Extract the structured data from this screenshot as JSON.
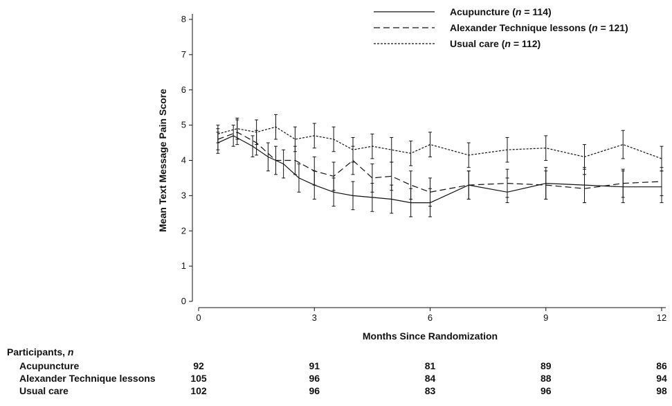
{
  "chart_data": {
    "type": "line",
    "xlabel": "Months Since Randomization",
    "ylabel": "Mean Text Message Pain Score",
    "xlim": [
      0,
      12
    ],
    "ylim": [
      0,
      8
    ],
    "xticks": [
      0,
      3,
      6,
      9,
      12
    ],
    "yticks": [
      0,
      1,
      2,
      3,
      4,
      5,
      6,
      7,
      8
    ],
    "legend_position": "top-right",
    "series": [
      {
        "name_main": "Acupuncture",
        "name_n": "114",
        "style": "solid",
        "x": [
          0.5,
          0.9,
          1.4,
          1.8,
          2.2,
          2.6,
          3.0,
          3.5,
          4.0,
          4.5,
          5.0,
          5.5,
          6.0,
          7.0,
          8.0,
          9.0,
          10.0,
          11.0,
          12.0
        ],
        "y": [
          4.5,
          4.7,
          4.4,
          4.1,
          3.9,
          3.5,
          3.3,
          3.1,
          3.0,
          2.95,
          2.9,
          2.8,
          2.8,
          3.3,
          3.1,
          3.35,
          3.3,
          3.25,
          3.25
        ],
        "low": [
          4.2,
          4.4,
          4.1,
          3.7,
          3.5,
          3.1,
          2.9,
          2.7,
          2.6,
          2.55,
          2.5,
          2.4,
          2.4,
          2.9,
          2.8,
          2.9,
          2.8,
          2.8,
          2.8
        ],
        "high": [
          4.8,
          5.0,
          4.7,
          4.5,
          4.3,
          3.9,
          3.7,
          3.5,
          3.4,
          3.35,
          3.3,
          3.2,
          3.2,
          3.7,
          3.5,
          3.8,
          3.8,
          3.7,
          3.7
        ]
      },
      {
        "name_main": "Alexander Technique lessons",
        "name_n": "121",
        "style": "dashed",
        "x": [
          0.5,
          1.0,
          1.5,
          2.0,
          2.5,
          3.0,
          3.5,
          4.0,
          4.5,
          5.0,
          5.5,
          6.0,
          7.0,
          8.0,
          9.0,
          10.0,
          11.0,
          12.0
        ],
        "y": [
          4.6,
          4.8,
          4.5,
          4.0,
          4.0,
          3.7,
          3.55,
          4.0,
          3.5,
          3.55,
          3.3,
          3.1,
          3.3,
          3.35,
          3.3,
          3.2,
          3.35,
          3.4
        ],
        "low": [
          4.3,
          4.45,
          4.15,
          3.6,
          3.6,
          3.3,
          3.15,
          3.6,
          3.1,
          3.15,
          2.9,
          2.7,
          2.9,
          2.95,
          2.9,
          2.8,
          2.95,
          3.0
        ],
        "high": [
          4.9,
          5.15,
          4.85,
          4.4,
          4.4,
          4.1,
          3.95,
          4.4,
          3.9,
          3.95,
          3.7,
          3.5,
          3.7,
          3.75,
          3.7,
          3.6,
          3.75,
          3.8
        ]
      },
      {
        "name_main": "Usual care",
        "name_n": "112",
        "style": "dotted",
        "x": [
          0.5,
          1.0,
          1.5,
          2.0,
          2.5,
          3.0,
          3.5,
          4.0,
          4.5,
          5.0,
          5.5,
          6.0,
          7.0,
          8.0,
          9.0,
          10.0,
          11.0,
          12.0
        ],
        "y": [
          4.75,
          4.9,
          4.8,
          4.95,
          4.6,
          4.7,
          4.6,
          4.3,
          4.4,
          4.3,
          4.2,
          4.45,
          4.15,
          4.3,
          4.35,
          4.1,
          4.45,
          4.05
        ],
        "low": [
          4.5,
          4.6,
          4.45,
          4.6,
          4.25,
          4.35,
          4.25,
          3.95,
          4.05,
          3.95,
          3.85,
          4.1,
          3.8,
          3.95,
          4.0,
          3.75,
          4.05,
          3.7
        ],
        "high": [
          5.0,
          5.2,
          5.15,
          5.3,
          4.95,
          5.05,
          4.95,
          4.65,
          4.75,
          4.65,
          4.55,
          4.8,
          4.5,
          4.65,
          4.7,
          4.45,
          4.85,
          4.4
        ]
      }
    ]
  },
  "participants_table": {
    "title_main": "Participants, ",
    "title_n": "n",
    "months": [
      0,
      3,
      6,
      9,
      12
    ],
    "rows": [
      {
        "label": "Acupuncture",
        "values": [
          "92",
          "91",
          "81",
          "89",
          "86"
        ]
      },
      {
        "label": "Alexander Technique lessons",
        "values": [
          "105",
          "96",
          "84",
          "88",
          "94"
        ]
      },
      {
        "label": "Usual care",
        "values": [
          "102",
          "96",
          "83",
          "96",
          "98"
        ]
      }
    ]
  }
}
